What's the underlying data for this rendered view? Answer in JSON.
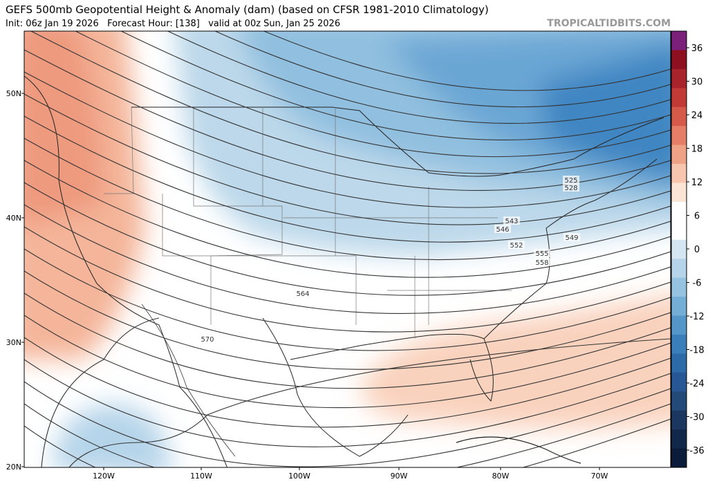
{
  "header": {
    "title": "GEFS 500mb Geopotential Height & Anomaly (dam) (based on CFSR 1981-2010 Climatology)",
    "subtitle": "Init: 06z Jan 19 2026   Forecast Hour: [138]   valid at 00z Sun, Jan 25 2026",
    "source": "TROPICALTIDBITS.COM"
  },
  "map": {
    "lat_labels": [
      "50N",
      "40N",
      "30N",
      "20N"
    ],
    "lon_labels": [
      "120W",
      "110W",
      "100W",
      "90W",
      "80W",
      "70W"
    ],
    "contour_labels": [
      "525",
      "528",
      "543",
      "546",
      "549",
      "552",
      "555",
      "558",
      "564",
      "570"
    ]
  },
  "colorbar": {
    "ticks": [
      36,
      30,
      24,
      18,
      12,
      6,
      0,
      -6,
      -12,
      -18,
      -24,
      -30,
      -36
    ],
    "colors": [
      "#7a1f7a",
      "#8e1020",
      "#a8232b",
      "#c23a36",
      "#d65a4a",
      "#e67d66",
      "#f0a287",
      "#f8c6ae",
      "#fbe3d5",
      "#ffffff",
      "#ffffff",
      "#d4e6f1",
      "#b5d4e9",
      "#95c2e1",
      "#74aed7",
      "#5596c8",
      "#3b7fba",
      "#2c6aa8",
      "#275794",
      "#244a7a",
      "#1b3760",
      "#12284a",
      "#0b1c3a"
    ]
  }
}
